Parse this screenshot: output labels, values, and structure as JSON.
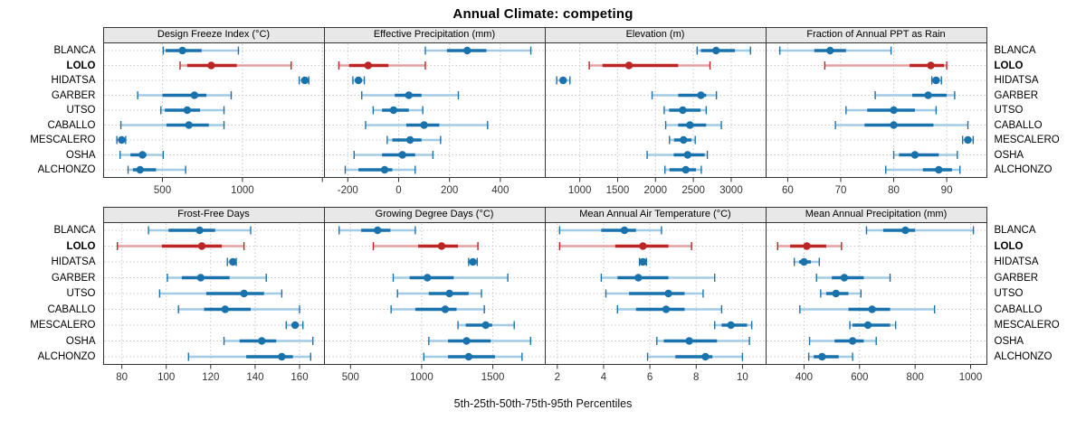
{
  "title": "Annual Climate: competing",
  "footer": "5th-25th-50th-75th-95th Percentiles",
  "sites": [
    "BLANCA",
    "LOLO",
    "HIDATSA",
    "GARBER",
    "UTSO",
    "CABALLO",
    "MESCALERO",
    "OSHA",
    "ALCHONZO"
  ],
  "highlight_site": "LOLO",
  "colors": {
    "point": "#1a72ad",
    "range": "#a3cbe3",
    "highlight_point": "#bb2525",
    "highlight_range": "#e3a0a0",
    "grid": "#c8c8c8",
    "strip_bg": "#e8e8e8",
    "panel_border": "#333333",
    "tick_text": "#333333"
  },
  "chart_data": {
    "type": "dot-whisker-trellis",
    "percentiles": [
      5,
      25,
      50,
      75,
      95
    ],
    "layout": "2 rows x 4 columns, site labels on both sides, LOLO highlighted red",
    "panels": [
      {
        "title": "Design Freeze Index (°C)",
        "xlim": [
          135,
          1510
        ],
        "ticks": [
          500,
          1000,
          1500
        ],
        "tick_labels": [
          "500",
          "1000",
          ""
        ],
        "values": [
          [
            505,
            520,
            625,
            745,
            975
          ],
          [
            610,
            655,
            805,
            965,
            1305
          ],
          [
            1355,
            1375,
            1390,
            1400,
            1415
          ],
          [
            345,
            500,
            700,
            775,
            930
          ],
          [
            490,
            515,
            655,
            735,
            885
          ],
          [
            240,
            525,
            665,
            790,
            885
          ],
          [
            215,
            230,
            245,
            255,
            270
          ],
          [
            235,
            300,
            375,
            400,
            505
          ],
          [
            285,
            315,
            360,
            460,
            645
          ]
        ]
      },
      {
        "title": "Effective Precipitation (mm)",
        "xlim": [
          -290,
          575
        ],
        "ticks": [
          -200,
          0,
          200,
          400
        ],
        "tick_labels": [
          "-200",
          "0",
          "200",
          "400"
        ],
        "values": [
          [
            105,
            190,
            270,
            345,
            520
          ],
          [
            -235,
            -195,
            -120,
            -40,
            105
          ],
          [
            -180,
            -168,
            -158,
            -147,
            -135
          ],
          [
            -145,
            -15,
            40,
            90,
            235
          ],
          [
            -100,
            -65,
            -20,
            40,
            95
          ],
          [
            -130,
            30,
            100,
            160,
            350
          ],
          [
            -45,
            -25,
            45,
            90,
            165
          ],
          [
            -175,
            -65,
            15,
            65,
            135
          ],
          [
            -210,
            -158,
            -55,
            -25,
            65
          ]
        ]
      },
      {
        "title": "Elevation (m)",
        "xlim": [
          550,
          3455
        ],
        "ticks": [
          1000,
          1500,
          2000,
          2500,
          3000
        ],
        "tick_labels": [
          "1000",
          "1500",
          "2000",
          "2500",
          "3000"
        ],
        "values": [
          [
            2550,
            2600,
            2800,
            3050,
            3255
          ],
          [
            1125,
            1300,
            1650,
            2300,
            2720
          ],
          [
            695,
            750,
            780,
            820,
            870
          ],
          [
            1955,
            2300,
            2600,
            2670,
            2805
          ],
          [
            2115,
            2180,
            2360,
            2595,
            2670
          ],
          [
            2135,
            2300,
            2455,
            2670,
            2870
          ],
          [
            2185,
            2245,
            2370,
            2475,
            2525
          ],
          [
            1890,
            2240,
            2425,
            2650,
            2685
          ],
          [
            2125,
            2185,
            2400,
            2535,
            2605
          ]
        ]
      },
      {
        "title": "Fraction of Annual PPT as Rain",
        "xlim": [
          56,
          97.5
        ],
        "ticks": [
          60,
          70,
          80,
          90
        ],
        "tick_labels": [
          "60",
          "70",
          "80",
          "90"
        ],
        "values": [
          [
            58.5,
            65,
            68,
            71,
            79.5
          ],
          [
            67,
            83,
            87,
            89.5,
            90
          ],
          [
            87.2,
            87.6,
            88,
            88.5,
            89
          ],
          [
            76.5,
            83.5,
            86.5,
            90,
            91.5
          ],
          [
            71,
            75,
            80,
            84,
            88
          ],
          [
            69,
            74.5,
            80,
            87.5,
            94
          ],
          [
            93,
            93.5,
            94,
            94.5,
            95
          ],
          [
            80,
            81,
            84,
            88.5,
            92
          ],
          [
            78.5,
            85.5,
            88.5,
            91,
            92.5
          ]
        ]
      },
      {
        "title": "Frost-Free Days",
        "xlim": [
          72,
          171
        ],
        "ticks": [
          80,
          100,
          120,
          140,
          160
        ],
        "tick_labels": [
          "80",
          "100",
          "120",
          "140",
          "160"
        ],
        "values": [
          [
            92,
            101,
            115,
            122,
            138
          ],
          [
            78,
            98,
            116,
            125,
            135
          ],
          [
            127.5,
            129,
            130,
            131,
            131.5
          ],
          [
            100.5,
            107,
            115.5,
            128.5,
            145
          ],
          [
            97,
            118,
            135,
            144,
            152
          ],
          [
            105.5,
            117,
            126.5,
            138,
            160
          ],
          [
            154,
            156.5,
            158,
            159.5,
            161.5
          ],
          [
            126,
            133,
            143,
            149.5,
            166
          ],
          [
            110,
            136,
            152,
            157,
            165
          ]
        ]
      },
      {
        "title": "Growing Degree Days (°C)",
        "xlim": [
          320,
          1865
        ],
        "ticks": [
          500,
          1000,
          1500
        ],
        "tick_labels": [
          "500",
          "1000",
          "1500"
        ],
        "values": [
          [
            420,
            575,
            690,
            780,
            955
          ],
          [
            660,
            975,
            1140,
            1255,
            1395
          ],
          [
            1330,
            1345,
            1360,
            1375,
            1390
          ],
          [
            800,
            915,
            1040,
            1225,
            1605
          ],
          [
            830,
            1050,
            1195,
            1330,
            1420
          ],
          [
            785,
            955,
            1165,
            1245,
            1440
          ],
          [
            1255,
            1310,
            1450,
            1495,
            1650
          ],
          [
            1050,
            1185,
            1315,
            1485,
            1765
          ],
          [
            1015,
            1185,
            1330,
            1515,
            1705
          ]
        ]
      },
      {
        "title": "Mean Annual Air Temperature (°C)",
        "xlim": [
          1.5,
          11
        ],
        "ticks": [
          2,
          4,
          6,
          8,
          10
        ],
        "tick_labels": [
          "2",
          "4",
          "6",
          "8",
          "10"
        ],
        "values": [
          [
            2.1,
            3.9,
            4.9,
            5.4,
            6.5
          ],
          [
            2.1,
            4.5,
            5.7,
            6.8,
            7.8
          ],
          [
            5.55,
            5.65,
            5.7,
            5.8,
            5.85
          ],
          [
            3.9,
            4.6,
            5.5,
            6.8,
            8.8
          ],
          [
            4.1,
            5.1,
            6.8,
            7.5,
            8.3
          ],
          [
            4.6,
            5.4,
            6.7,
            7.5,
            9.1
          ],
          [
            8.8,
            9.1,
            9.5,
            10.2,
            10.4
          ],
          [
            6.3,
            6.6,
            7.7,
            8.9,
            10.3
          ],
          [
            5.9,
            7.1,
            8.4,
            8.7,
            10
          ]
        ]
      },
      {
        "title": "Mean Annual Precipitation (mm)",
        "xlim": [
          265,
          1057
        ],
        "ticks": [
          400,
          600,
          800,
          1000
        ],
        "tick_labels": [
          "400",
          "600",
          "800",
          "1000"
        ],
        "values": [
          [
            625,
            685,
            765,
            800,
            1010
          ],
          [
            305,
            350,
            410,
            480,
            535
          ],
          [
            365,
            382,
            400,
            425,
            455
          ],
          [
            445,
            500,
            545,
            615,
            710
          ],
          [
            460,
            480,
            515,
            560,
            605
          ],
          [
            385,
            560,
            645,
            710,
            870
          ],
          [
            565,
            575,
            630,
            710,
            730
          ],
          [
            420,
            510,
            575,
            615,
            660
          ],
          [
            417,
            435,
            465,
            525,
            575
          ]
        ]
      }
    ]
  }
}
